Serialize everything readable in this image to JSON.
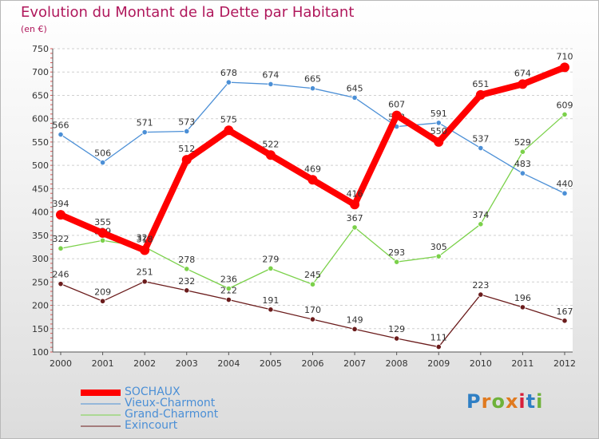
{
  "title": "Evolution du Montant de la Dette par Habitant",
  "subtitle": "(en €)",
  "brand": {
    "text": "Proxiti",
    "letter_colors": [
      "#2f7fc4",
      "#e07a1f",
      "#6fb23a",
      "#e07a1f",
      "#d81f3a",
      "#2f7fc4",
      "#6fb23a"
    ]
  },
  "chart_data": {
    "type": "line",
    "title": "Evolution du Montant de la Dette par Habitant",
    "subtitle": "(en €)",
    "xlabel": "",
    "ylabel": "",
    "x": [
      "2000",
      "2001",
      "2002",
      "2003",
      "2004",
      "2005",
      "2006",
      "2007",
      "2008",
      "2009",
      "2010",
      "2011",
      "2012"
    ],
    "ylim": [
      100,
      750
    ],
    "yticks": [
      100,
      150,
      200,
      250,
      300,
      350,
      400,
      450,
      500,
      550,
      600,
      650,
      700,
      750
    ],
    "grid": "horizontal dashed",
    "legend_position": "bottom-left",
    "series": [
      {
        "name": "SOCHAUX",
        "color": "#ff0000",
        "values": [
          394,
          355,
          318,
          512,
          575,
          522,
          469,
          416,
          607,
          550,
          651,
          674,
          710
        ]
      },
      {
        "name": "Vieux-Charmont",
        "color": "#4b8fd6",
        "values": [
          566,
          506,
          571,
          573,
          678,
          674,
          665,
          645,
          583,
          591,
          537,
          483,
          440
        ]
      },
      {
        "name": "Grand-Charmont",
        "color": "#7bd14a",
        "values": [
          322,
          339,
          325,
          278,
          236,
          279,
          245,
          367,
          293,
          305,
          374,
          529,
          609
        ]
      },
      {
        "name": "Exincourt",
        "color": "#6b1c1c",
        "values": [
          246,
          209,
          251,
          232,
          212,
          191,
          170,
          149,
          129,
          111,
          223,
          196,
          167
        ]
      }
    ]
  }
}
